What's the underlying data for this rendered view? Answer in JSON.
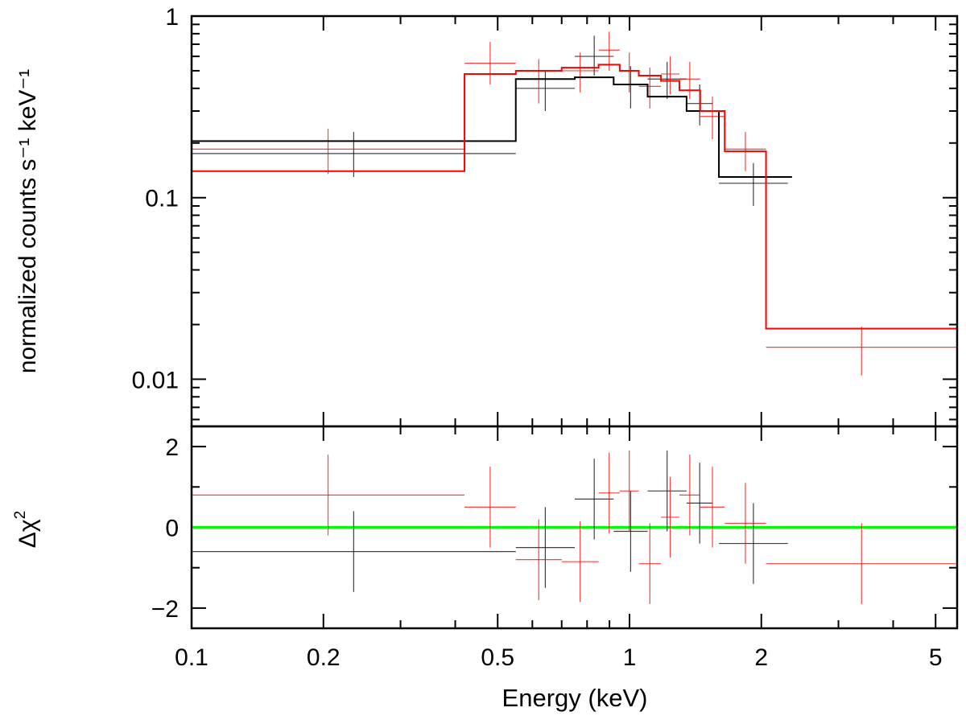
{
  "chart_data": {
    "type": "scatter",
    "subtype": "x-ray spectrum with residuals",
    "xscale": "log",
    "xlim": [
      0.1,
      5.6
    ],
    "xlabel": "Energy (keV)",
    "x_ticks": [
      {
        "value": 0.1,
        "label": "0.1"
      },
      {
        "value": 0.2,
        "label": "0.2"
      },
      {
        "value": 0.5,
        "label": "0.5"
      },
      {
        "value": 1,
        "label": "1"
      },
      {
        "value": 2,
        "label": "2"
      },
      {
        "value": 5,
        "label": "5"
      }
    ],
    "colors": {
      "black": "#000000",
      "red": "#ff0000",
      "zero_line": "#00ff00"
    },
    "top_panel": {
      "ylabel": "normalized counts s⁻¹ keV⁻¹",
      "yscale": "log",
      "ylim": [
        0.0055,
        1.0
      ],
      "y_ticks": [
        {
          "value": 1,
          "label": "1"
        },
        {
          "value": 0.1,
          "label": "0.1"
        },
        {
          "value": 0.01,
          "label": "0.01"
        }
      ],
      "series": [
        {
          "name": "black",
          "color": "#000000",
          "data": [
            {
              "x": [
                0.1,
                0.55
              ],
              "y": 0.175,
              "yerr": [
                0.13,
                0.23
              ]
            },
            {
              "x": [
                0.55,
                0.75
              ],
              "y": 0.4,
              "yerr": [
                0.3,
                0.5
              ]
            },
            {
              "x": [
                0.75,
                0.92
              ],
              "y": 0.6,
              "yerr": [
                0.47,
                0.78
              ]
            },
            {
              "x": [
                0.92,
                1.1
              ],
              "y": 0.42,
              "yerr": [
                0.31,
                0.53
              ]
            },
            {
              "x": [
                1.1,
                1.35
              ],
              "y": 0.45,
              "yerr": [
                0.35,
                0.56
              ]
            },
            {
              "x": [
                1.35,
                1.55
              ],
              "y": 0.33,
              "yerr": [
                0.25,
                0.42
              ]
            },
            {
              "x": [
                1.6,
                2.3
              ],
              "y": 0.12,
              "yerr": [
                0.09,
                0.155
              ]
            }
          ],
          "model": [
            {
              "x0": 0.1,
              "x1": 0.55,
              "y": 0.205
            },
            {
              "x0": 0.55,
              "x1": 0.75,
              "y": 0.45
            },
            {
              "x0": 0.75,
              "x1": 0.92,
              "y": 0.46
            },
            {
              "x0": 0.92,
              "x1": 1.1,
              "y": 0.42
            },
            {
              "x0": 1.1,
              "x1": 1.35,
              "y": 0.36
            },
            {
              "x0": 1.35,
              "x1": 1.6,
              "y": 0.3
            },
            {
              "x0": 1.6,
              "x1": 2.35,
              "y": 0.13
            }
          ]
        },
        {
          "name": "red",
          "color": "#ff0000",
          "data": [
            {
              "x": [
                0.1,
                0.42
              ],
              "y": 0.185,
              "yerr": [
                0.135,
                0.24
              ]
            },
            {
              "x": [
                0.42,
                0.55
              ],
              "y": 0.55,
              "yerr": [
                0.42,
                0.72
              ]
            },
            {
              "x": [
                0.55,
                0.7
              ],
              "y": 0.45,
              "yerr": [
                0.33,
                0.58
              ]
            },
            {
              "x": [
                0.7,
                0.85
              ],
              "y": 0.5,
              "yerr": [
                0.38,
                0.63
              ]
            },
            {
              "x": [
                0.85,
                0.95
              ],
              "y": 0.65,
              "yerr": [
                0.5,
                0.82
              ]
            },
            {
              "x": [
                0.95,
                1.05
              ],
              "y": 0.5,
              "yerr": [
                0.38,
                0.63
              ]
            },
            {
              "x": [
                1.05,
                1.18
              ],
              "y": 0.41,
              "yerr": [
                0.31,
                0.52
              ]
            },
            {
              "x": [
                1.18,
                1.3
              ],
              "y": 0.48,
              "yerr": [
                0.37,
                0.6
              ]
            },
            {
              "x": [
                1.3,
                1.45
              ],
              "y": 0.45,
              "yerr": [
                0.35,
                0.56
              ]
            },
            {
              "x": [
                1.45,
                1.65
              ],
              "y": 0.28,
              "yerr": [
                0.21,
                0.36
              ]
            },
            {
              "x": [
                1.65,
                2.05
              ],
              "y": 0.185,
              "yerr": [
                0.14,
                0.23
              ]
            },
            {
              "x": [
                2.05,
                5.6
              ],
              "y": 0.015,
              "yerr": [
                0.0105,
                0.0195
              ]
            }
          ],
          "model": [
            {
              "x0": 0.1,
              "x1": 0.42,
              "y": 0.14
            },
            {
              "x0": 0.42,
              "x1": 0.55,
              "y": 0.48
            },
            {
              "x0": 0.55,
              "x1": 0.7,
              "y": 0.5
            },
            {
              "x0": 0.7,
              "x1": 0.85,
              "y": 0.52
            },
            {
              "x0": 0.85,
              "x1": 0.95,
              "y": 0.54
            },
            {
              "x0": 0.95,
              "x1": 1.05,
              "y": 0.5
            },
            {
              "x0": 1.05,
              "x1": 1.18,
              "y": 0.47
            },
            {
              "x0": 1.18,
              "x1": 1.3,
              "y": 0.44
            },
            {
              "x0": 1.3,
              "x1": 1.45,
              "y": 0.39
            },
            {
              "x0": 1.45,
              "x1": 1.65,
              "y": 0.3
            },
            {
              "x0": 1.65,
              "x1": 2.05,
              "y": 0.18
            },
            {
              "x0": 2.05,
              "x1": 5.6,
              "y": 0.019
            }
          ]
        }
      ]
    },
    "bottom_panel": {
      "ylabel": "Δχ",
      "ylabel_superscript": "2",
      "yscale": "linear",
      "ylim": [
        -2.5,
        2.5
      ],
      "y_ticks": [
        {
          "value": 2,
          "label": "2"
        },
        {
          "value": 0,
          "label": "0"
        },
        {
          "value": -2,
          "label": "−2"
        }
      ],
      "zero_line": 0,
      "series": [
        {
          "name": "black",
          "color": "#000000",
          "data": [
            {
              "x": [
                0.1,
                0.55
              ],
              "y": -0.6,
              "yerr": [
                -1.6,
                0.4
              ]
            },
            {
              "x": [
                0.55,
                0.75
              ],
              "y": -0.5,
              "yerr": [
                -1.5,
                0.5
              ]
            },
            {
              "x": [
                0.75,
                0.92
              ],
              "y": 0.7,
              "yerr": [
                -0.3,
                1.7
              ]
            },
            {
              "x": [
                0.92,
                1.1
              ],
              "y": -0.1,
              "yerr": [
                -1.1,
                0.9
              ]
            },
            {
              "x": [
                1.1,
                1.35
              ],
              "y": 0.9,
              "yerr": [
                -0.1,
                1.9
              ]
            },
            {
              "x": [
                1.35,
                1.55
              ],
              "y": 0.6,
              "yerr": [
                -0.4,
                1.6
              ]
            },
            {
              "x": [
                1.6,
                2.3
              ],
              "y": -0.4,
              "yerr": [
                -1.4,
                0.6
              ]
            }
          ]
        },
        {
          "name": "red",
          "color": "#ff0000",
          "data": [
            {
              "x": [
                0.1,
                0.42
              ],
              "y": 0.8,
              "yerr": [
                -0.2,
                1.8
              ]
            },
            {
              "x": [
                0.42,
                0.55
              ],
              "y": 0.5,
              "yerr": [
                -0.5,
                1.5
              ]
            },
            {
              "x": [
                0.55,
                0.7
              ],
              "y": -0.8,
              "yerr": [
                -1.8,
                0.2
              ]
            },
            {
              "x": [
                0.7,
                0.85
              ],
              "y": -0.85,
              "yerr": [
                -1.85,
                0.15
              ]
            },
            {
              "x": [
                0.85,
                0.95
              ],
              "y": 0.85,
              "yerr": [
                -0.15,
                1.85
              ]
            },
            {
              "x": [
                0.95,
                1.05
              ],
              "y": 0.9,
              "yerr": [
                -0.1,
                1.9
              ]
            },
            {
              "x": [
                1.05,
                1.18
              ],
              "y": -0.9,
              "yerr": [
                -1.9,
                0.1
              ]
            },
            {
              "x": [
                1.18,
                1.3
              ],
              "y": 0.25,
              "yerr": [
                -0.75,
                1.25
              ]
            },
            {
              "x": [
                1.3,
                1.45
              ],
              "y": 0.8,
              "yerr": [
                -0.2,
                1.8
              ]
            },
            {
              "x": [
                1.45,
                1.65
              ],
              "y": 0.5,
              "yerr": [
                -0.5,
                1.5
              ]
            },
            {
              "x": [
                1.65,
                2.05
              ],
              "y": 0.1,
              "yerr": [
                -0.9,
                1.1
              ]
            },
            {
              "x": [
                2.05,
                5.6
              ],
              "y": -0.9,
              "yerr": [
                -1.9,
                0.1
              ]
            }
          ]
        }
      ]
    }
  }
}
